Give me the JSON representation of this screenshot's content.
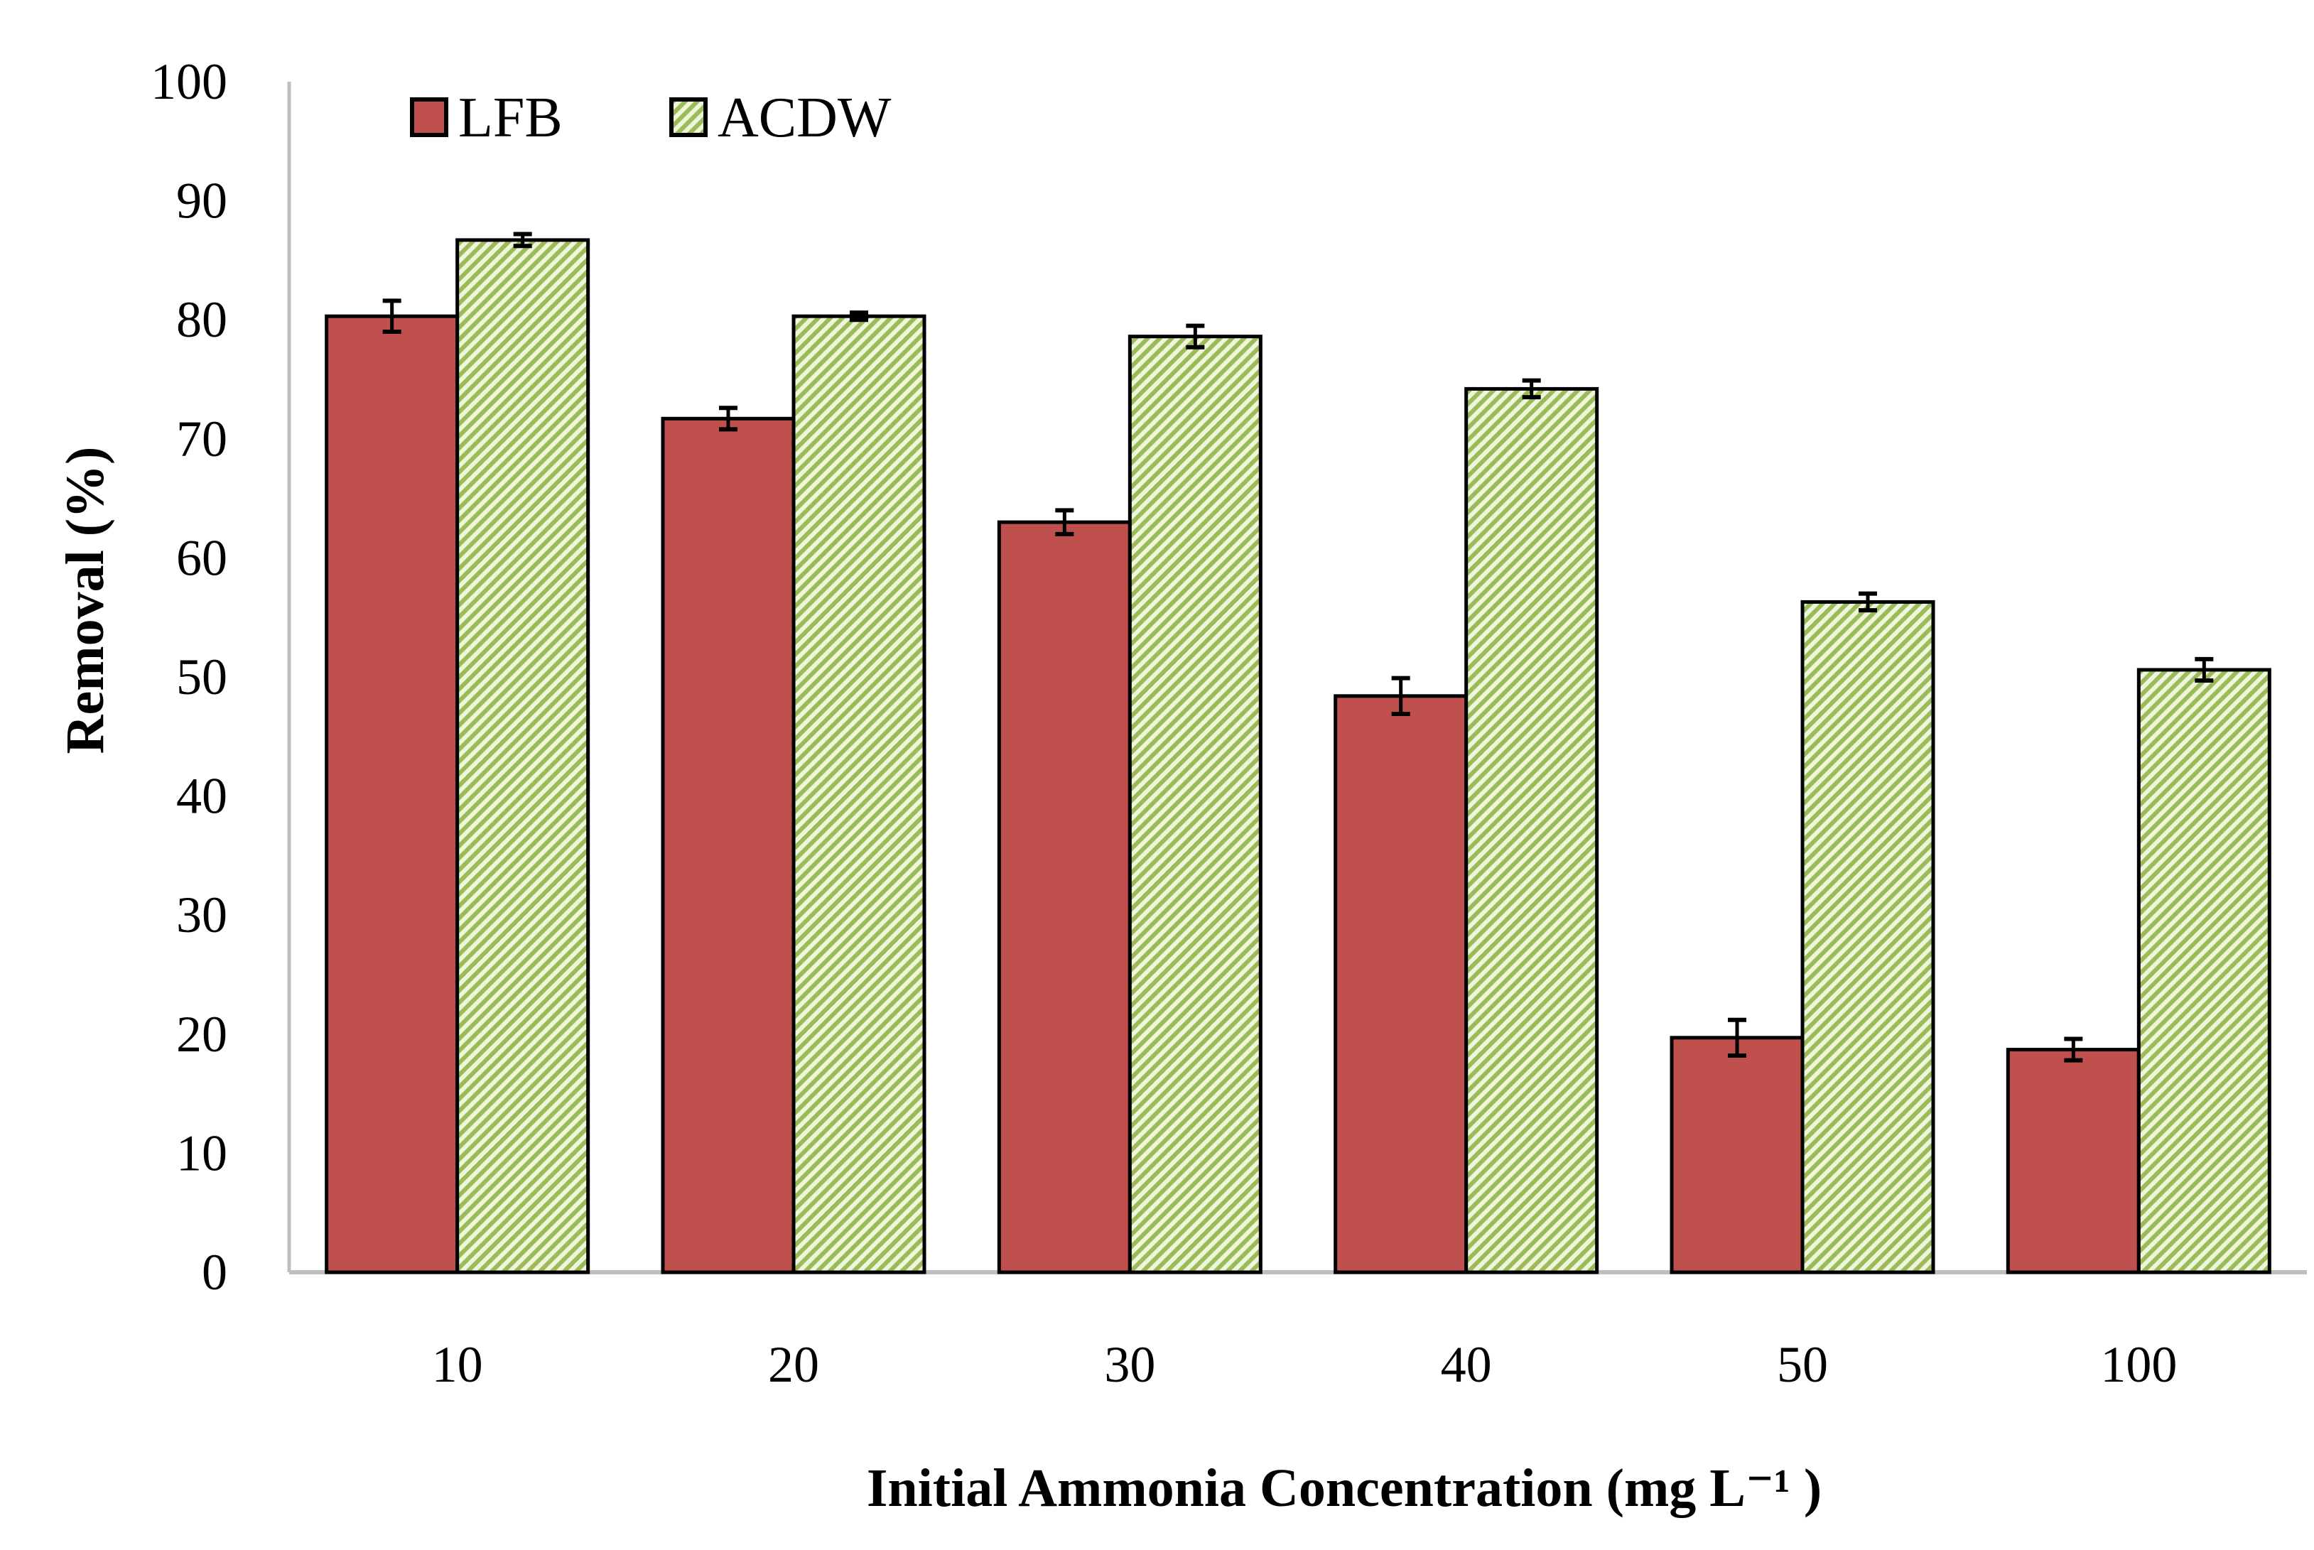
{
  "chart_data": {
    "type": "bar",
    "title": "",
    "xlabel": "Initial Ammonia Concentration (mg L⁻¹ )",
    "ylabel": "Removal (%)",
    "ylim": [
      0,
      100
    ],
    "yticks": [
      0,
      10,
      20,
      30,
      40,
      50,
      60,
      70,
      80,
      90,
      100
    ],
    "categories": [
      "10",
      "20",
      "30",
      "40",
      "50",
      "100"
    ],
    "grid": false,
    "legend_position": "top-left",
    "series": [
      {
        "name": "LFB",
        "color": "#C0504D",
        "pattern": "solid",
        "values": [
          80.3,
          71.7,
          63.0,
          48.4,
          19.7,
          18.7
        ],
        "errors": [
          1.3,
          0.9,
          1.0,
          1.5,
          1.5,
          0.9
        ]
      },
      {
        "name": "ACDW",
        "color": "#9BBB59",
        "pattern": "diagonal-hatch",
        "values": [
          86.7,
          80.3,
          78.6,
          74.2,
          56.3,
          50.6
        ],
        "errors": [
          0.5,
          0.3,
          0.9,
          0.7,
          0.7,
          0.9
        ]
      }
    ]
  }
}
